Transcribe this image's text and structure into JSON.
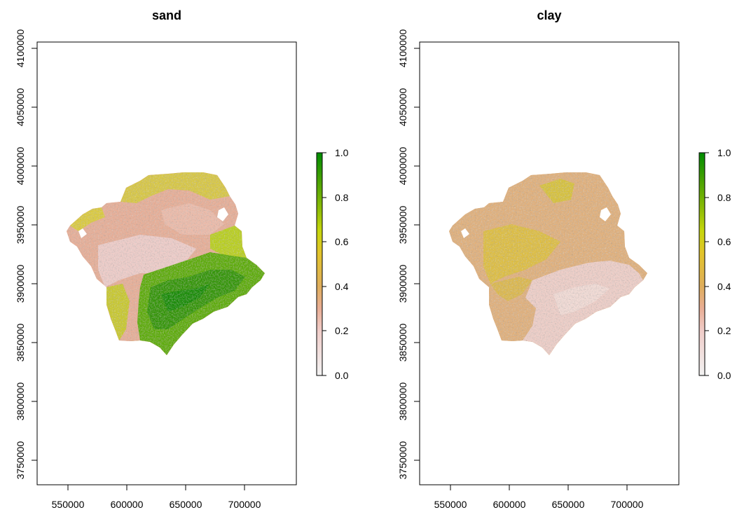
{
  "chart_data": [
    {
      "type": "heatmap",
      "title": "sand",
      "x_ticks": [
        550000,
        600000,
        650000,
        700000
      ],
      "y_ticks": [
        3750000,
        3800000,
        3850000,
        3900000,
        3950000,
        4000000,
        4050000,
        4100000
      ],
      "xlim": [
        522000,
        740000
      ],
      "ylim": [
        3730000,
        4105000
      ],
      "legend": {
        "placement": "right",
        "min": 0.0,
        "max": 1.0,
        "ticks": [
          "0.0",
          "0.2",
          "0.4",
          "0.6",
          "0.8",
          "1.0"
        ]
      },
      "regions": [
        {
          "fill": "light-pink",
          "range": "0.0-0.2",
          "area": "central-west"
        },
        {
          "fill": "salmon",
          "range": "0.2-0.4",
          "area": "north and west"
        },
        {
          "fill": "yellow-green",
          "range": "0.5-0.7",
          "area": "north rim and east"
        },
        {
          "fill": "green",
          "range": "0.7-1.0",
          "area": "south-east"
        }
      ]
    },
    {
      "type": "heatmap",
      "title": "clay",
      "x_ticks": [
        550000,
        600000,
        650000,
        700000
      ],
      "y_ticks": [
        3750000,
        3800000,
        3850000,
        3900000,
        3950000,
        4000000,
        4050000,
        4100000
      ],
      "xlim": [
        522000,
        740000
      ],
      "ylim": [
        3730000,
        4105000
      ],
      "legend": {
        "placement": "right",
        "min": 0.0,
        "max": 1.0,
        "ticks": [
          "0.0",
          "0.2",
          "0.4",
          "0.6",
          "0.8",
          "1.0"
        ]
      },
      "regions": [
        {
          "fill": "tan",
          "range": "0.3-0.4",
          "area": "most of region"
        },
        {
          "fill": "light-pink",
          "range": "0.0-0.2",
          "area": "south-east"
        },
        {
          "fill": "yellow",
          "range": "0.4-0.5",
          "area": "central-west"
        }
      ]
    }
  ],
  "colors": {
    "palette": [
      "#f2f2f2",
      "#f0cdc9",
      "#e9ae96",
      "#dfae5c",
      "#e2c42a",
      "#c6d60c",
      "#8cbc06",
      "#46a102",
      "#008c00"
    ],
    "axis": "#000000"
  }
}
